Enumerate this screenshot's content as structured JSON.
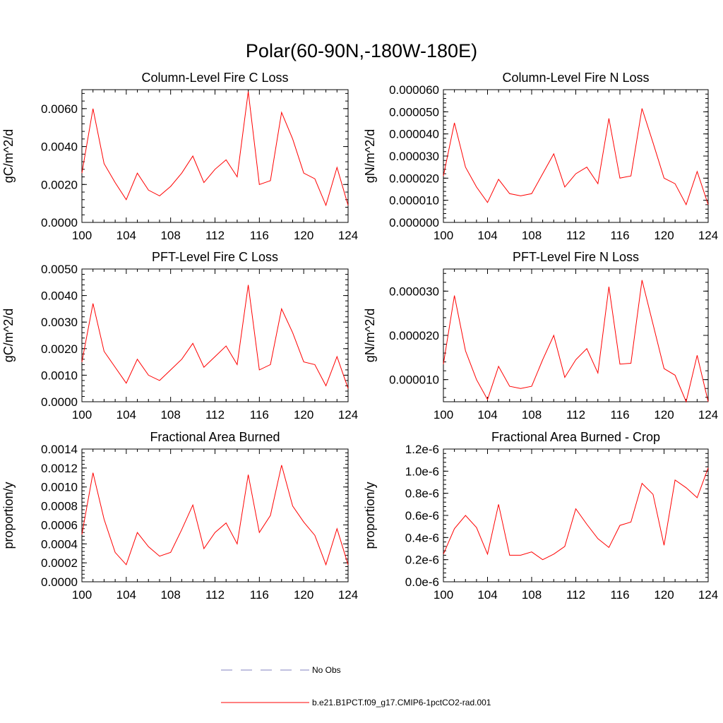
{
  "figure": {
    "suptitle": "Polar(60-90N,-180W-180E)"
  },
  "legend": {
    "items": [
      {
        "label": "No Obs",
        "color": "#8080c0",
        "dash": true
      },
      {
        "label": "b.e21.B1PCT.f09_g17.CMIP6-1pctCO2-rad.001",
        "color": "#ff0000",
        "dash": false
      }
    ]
  },
  "chart_data": [
    {
      "type": "line",
      "title": "Column-Level Fire C Loss",
      "xlabel": "",
      "ylabel": "gC/m^2/d",
      "xlim": [
        100,
        124
      ],
      "ylim": [
        0,
        0.007
      ],
      "xticks": [
        "100",
        "104",
        "108",
        "112",
        "116",
        "120",
        "124"
      ],
      "yticks": [
        "0.0000",
        "0.0020",
        "0.0040",
        "0.0060"
      ],
      "ytick_values": [
        0,
        0.002,
        0.004,
        0.006
      ],
      "x": [
        100,
        101,
        102,
        103,
        104,
        105,
        106,
        107,
        108,
        109,
        110,
        111,
        112,
        113,
        114,
        115,
        116,
        117,
        118,
        119,
        120,
        121,
        122,
        123,
        124
      ],
      "series": [
        {
          "color": "#ff0000",
          "values": [
            0.0026,
            0.006,
            0.0031,
            0.0021,
            0.0012,
            0.0026,
            0.0017,
            0.0014,
            0.0019,
            0.0026,
            0.0035,
            0.0021,
            0.0028,
            0.0033,
            0.0024,
            0.0069,
            0.002,
            0.0022,
            0.0058,
            0.0044,
            0.0026,
            0.0023,
            0.0009,
            0.0029,
            0.0009
          ]
        }
      ]
    },
    {
      "type": "line",
      "title": "Column-Level Fire N Loss",
      "xlabel": "",
      "ylabel": "gN/m^2/d",
      "xlim": [
        100,
        124
      ],
      "ylim": [
        0,
        6e-05
      ],
      "xticks": [
        "100",
        "104",
        "108",
        "112",
        "116",
        "120",
        "124"
      ],
      "yticks": [
        "0.000000",
        "0.000010",
        "0.000020",
        "0.000030",
        "0.000040",
        "0.000050",
        "0.000060"
      ],
      "ytick_values": [
        0,
        1e-05,
        2e-05,
        3e-05,
        4e-05,
        5e-05,
        6e-05
      ],
      "x": [
        100,
        101,
        102,
        103,
        104,
        105,
        106,
        107,
        108,
        109,
        110,
        111,
        112,
        113,
        114,
        115,
        116,
        117,
        118,
        119,
        120,
        121,
        122,
        123,
        124
      ],
      "series": [
        {
          "color": "#ff0000",
          "values": [
            2.1e-05,
            4.5e-05,
            2.5e-05,
            1.6e-05,
            9e-06,
            1.95e-05,
            1.3e-05,
            1.2e-05,
            1.3e-05,
            2.2e-05,
            3.1e-05,
            1.6e-05,
            2.2e-05,
            2.5e-05,
            1.75e-05,
            4.7e-05,
            2e-05,
            2.1e-05,
            5.15e-05,
            3.6e-05,
            2e-05,
            1.75e-05,
            8e-06,
            2.3e-05,
            8e-06
          ]
        }
      ]
    },
    {
      "type": "line",
      "title": "PFT-Level Fire C Loss",
      "xlabel": "",
      "ylabel": "gC/m^2/d",
      "xlim": [
        100,
        124
      ],
      "ylim": [
        0,
        0.005
      ],
      "xticks": [
        "100",
        "104",
        "108",
        "112",
        "116",
        "120",
        "124"
      ],
      "yticks": [
        "0.0000",
        "0.0010",
        "0.0020",
        "0.0030",
        "0.0040",
        "0.0050"
      ],
      "ytick_values": [
        0,
        0.001,
        0.002,
        0.003,
        0.004,
        0.005
      ],
      "x": [
        100,
        101,
        102,
        103,
        104,
        105,
        106,
        107,
        108,
        109,
        110,
        111,
        112,
        113,
        114,
        115,
        116,
        117,
        118,
        119,
        120,
        121,
        122,
        123,
        124
      ],
      "series": [
        {
          "color": "#ff0000",
          "values": [
            0.0015,
            0.0037,
            0.0019,
            0.0013,
            0.0007,
            0.0016,
            0.001,
            0.0008,
            0.0012,
            0.0016,
            0.0022,
            0.0013,
            0.0017,
            0.0021,
            0.0014,
            0.0044,
            0.0012,
            0.0014,
            0.0035,
            0.0026,
            0.0015,
            0.0014,
            0.0006,
            0.0017,
            0.0005
          ]
        }
      ]
    },
    {
      "type": "line",
      "title": "PFT-Level Fire N Loss",
      "xlabel": "",
      "ylabel": "gN/m^2/d",
      "xlim": [
        100,
        124
      ],
      "ylim": [
        5e-06,
        3.5e-05
      ],
      "xticks": [
        "100",
        "104",
        "108",
        "112",
        "116",
        "120",
        "124"
      ],
      "yticks": [
        "0.000010",
        "0.000020",
        "0.000030"
      ],
      "ytick_values": [
        1e-05,
        2e-05,
        3e-05
      ],
      "x": [
        100,
        101,
        102,
        103,
        104,
        105,
        106,
        107,
        108,
        109,
        110,
        111,
        112,
        113,
        114,
        115,
        116,
        117,
        118,
        119,
        120,
        121,
        122,
        123,
        124
      ],
      "series": [
        {
          "color": "#ff0000",
          "values": [
            1.35e-05,
            2.9e-05,
            1.65e-05,
            1e-05,
            5.5e-06,
            1.3e-05,
            8.5e-06,
            8e-06,
            8.5e-06,
            1.45e-05,
            2e-05,
            1.05e-05,
            1.45e-05,
            1.7e-05,
            1.15e-05,
            3.1e-05,
            1.35e-05,
            1.37e-05,
            3.25e-05,
            2.25e-05,
            1.25e-05,
            1.1e-05,
            5e-06,
            1.55e-05,
            5e-06
          ]
        }
      ]
    },
    {
      "type": "line",
      "title": "Fractional Area Burned",
      "xlabel": "",
      "ylabel": "proportion/y",
      "xlim": [
        100,
        124
      ],
      "ylim": [
        0,
        0.0014
      ],
      "xticks": [
        "100",
        "104",
        "108",
        "112",
        "116",
        "120",
        "124"
      ],
      "yticks": [
        "0.0000",
        "0.0002",
        "0.0004",
        "0.0006",
        "0.0008",
        "0.0010",
        "0.0012",
        "0.0014"
      ],
      "ytick_values": [
        0,
        0.0002,
        0.0004,
        0.0006,
        0.0008,
        0.001,
        0.0012,
        0.0014
      ],
      "x": [
        100,
        101,
        102,
        103,
        104,
        105,
        106,
        107,
        108,
        109,
        110,
        111,
        112,
        113,
        114,
        115,
        116,
        117,
        118,
        119,
        120,
        121,
        122,
        123,
        124
      ],
      "series": [
        {
          "color": "#ff0000",
          "values": [
            0.0005,
            0.00115,
            0.00066,
            0.00031,
            0.00018,
            0.00052,
            0.00037,
            0.00027,
            0.00031,
            0.00055,
            0.00081,
            0.00035,
            0.00052,
            0.00062,
            0.0004,
            0.00113,
            0.00052,
            0.0007,
            0.00123,
            0.0008,
            0.00063,
            0.00049,
            0.00018,
            0.00056,
            0.00018
          ]
        }
      ]
    },
    {
      "type": "line",
      "title": "Fractional Area Burned - Crop",
      "xlabel": "",
      "ylabel": "proportion/y",
      "xlim": [
        100,
        124
      ],
      "ylim": [
        0,
        1.2e-06
      ],
      "xticks": [
        "100",
        "104",
        "108",
        "112",
        "116",
        "120",
        "124"
      ],
      "yticks": [
        "0.0e-6",
        "0.2e-6",
        "0.4e-6",
        "0.6e-6",
        "0.8e-6",
        "1.0e-6",
        "1.2e-6"
      ],
      "ytick_values": [
        0,
        2e-07,
        4e-07,
        6e-07,
        8e-07,
        1e-06,
        1.2e-06
      ],
      "x": [
        100,
        101,
        102,
        103,
        104,
        105,
        106,
        107,
        108,
        109,
        110,
        111,
        112,
        113,
        114,
        115,
        116,
        117,
        118,
        119,
        120,
        121,
        122,
        123,
        124
      ],
      "series": [
        {
          "color": "#ff0000",
          "values": [
            2.5e-07,
            4.8e-07,
            6e-07,
            4.9e-07,
            2.5e-07,
            7e-07,
            2.4e-07,
            2.4e-07,
            2.7e-07,
            2e-07,
            2.5e-07,
            3.2e-07,
            6.6e-07,
            5.2e-07,
            3.9e-07,
            3.1e-07,
            5.1e-07,
            5.4e-07,
            8.9e-07,
            7.9e-07,
            3.3e-07,
            9.2e-07,
            8.5e-07,
            7.6e-07,
            1.03e-06
          ]
        }
      ]
    }
  ]
}
